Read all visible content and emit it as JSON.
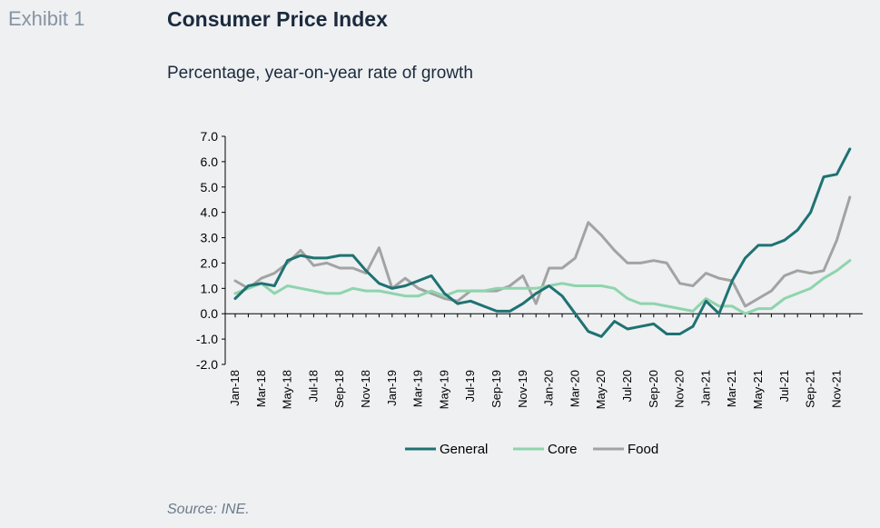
{
  "header": {
    "exhibit": "Exhibit 1",
    "title": "Consumer Price Index",
    "subtitle": "Percentage, year-on-year rate of growth"
  },
  "footer": {
    "source": "Source: INE."
  },
  "chart_data": {
    "type": "line",
    "x": [
      "Jan-18",
      "Feb-18",
      "Mar-18",
      "Apr-18",
      "May-18",
      "Jun-18",
      "Jul-18",
      "Aug-18",
      "Sep-18",
      "Oct-18",
      "Nov-18",
      "Dec-18",
      "Jan-19",
      "Feb-19",
      "Mar-19",
      "Apr-19",
      "May-19",
      "Jun-19",
      "Jul-19",
      "Aug-19",
      "Sep-19",
      "Oct-19",
      "Nov-19",
      "Dec-19",
      "Jan-20",
      "Feb-20",
      "Mar-20",
      "Apr-20",
      "May-20",
      "Jun-20",
      "Jul-20",
      "Aug-20",
      "Sep-20",
      "Oct-20",
      "Nov-20",
      "Dec-20",
      "Jan-21",
      "Feb-21",
      "Mar-21",
      "Apr-21",
      "May-21",
      "Jun-21",
      "Jul-21",
      "Aug-21",
      "Sep-21",
      "Oct-21",
      "Nov-21",
      "Dec-21"
    ],
    "xticks": [
      "Jan-18",
      "Mar-18",
      "May-18",
      "Jul-18",
      "Sep-18",
      "Nov-18",
      "Jan-19",
      "Mar-19",
      "May-19",
      "Jul-19",
      "Sep-19",
      "Nov-19",
      "Jan-20",
      "Mar-20",
      "May-20",
      "Jul-20",
      "Sep-20",
      "Nov-20",
      "Jan-21",
      "Mar-21",
      "May-21",
      "Jul-21",
      "Sep-21",
      "Nov-21"
    ],
    "yticks": [
      "7.0",
      "6.0",
      "5.0",
      "4.0",
      "3.0",
      "2.0",
      "1.0",
      "0.0",
      "-1.0",
      "-2.0"
    ],
    "ylim": [
      -2,
      7
    ],
    "grid": false,
    "legend_position": "bottom",
    "series": [
      {
        "name": "General",
        "color": "#1f7272",
        "values": [
          0.6,
          1.1,
          1.2,
          1.1,
          2.1,
          2.3,
          2.2,
          2.2,
          2.3,
          2.3,
          1.7,
          1.2,
          1.0,
          1.1,
          1.3,
          1.5,
          0.8,
          0.4,
          0.5,
          0.3,
          0.1,
          0.1,
          0.4,
          0.8,
          1.1,
          0.7,
          0.0,
          -0.7,
          -0.9,
          -0.3,
          -0.6,
          -0.5,
          -0.4,
          -0.8,
          -0.8,
          -0.5,
          0.5,
          0.0,
          1.3,
          2.2,
          2.7,
          2.7,
          2.9,
          3.3,
          4.0,
          5.4,
          5.5,
          6.5
        ]
      },
      {
        "name": "Core",
        "color": "#8fd4ad",
        "values": [
          0.8,
          1.0,
          1.2,
          0.8,
          1.1,
          1.0,
          0.9,
          0.8,
          0.8,
          1.0,
          0.9,
          0.9,
          0.8,
          0.7,
          0.7,
          0.9,
          0.7,
          0.9,
          0.9,
          0.9,
          1.0,
          1.0,
          1.0,
          1.0,
          1.1,
          1.2,
          1.1,
          1.1,
          1.1,
          1.0,
          0.6,
          0.4,
          0.4,
          0.3,
          0.2,
          0.1,
          0.6,
          0.3,
          0.3,
          0.0,
          0.2,
          0.2,
          0.6,
          0.8,
          1.0,
          1.4,
          1.7,
          2.1
        ]
      },
      {
        "name": "Food",
        "color": "#a3a3a3",
        "values": [
          1.3,
          1.0,
          1.4,
          1.6,
          2.0,
          2.5,
          1.9,
          2.0,
          1.8,
          1.8,
          1.6,
          2.6,
          1.0,
          1.4,
          1.0,
          0.8,
          0.6,
          0.5,
          0.9,
          0.9,
          0.9,
          1.1,
          1.5,
          0.4,
          1.8,
          1.8,
          2.2,
          3.6,
          3.1,
          2.5,
          2.0,
          2.0,
          2.1,
          2.0,
          1.2,
          1.1,
          1.6,
          1.4,
          1.3,
          0.3,
          0.6,
          0.9,
          1.5,
          1.7,
          1.6,
          1.7,
          2.9,
          4.6
        ]
      }
    ]
  }
}
